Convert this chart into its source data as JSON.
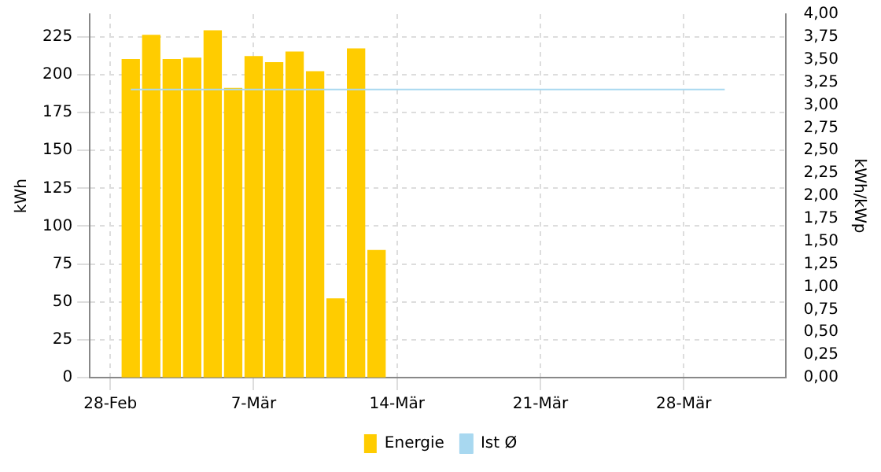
{
  "chart_data": {
    "type": "bar",
    "xlabel": null,
    "ylabel": "kWh",
    "y2label": "kWh/kWp",
    "x": [
      "--03-01",
      "--03-02",
      "--03-03",
      "--03-04",
      "--03-05",
      "--03-06",
      "--03-07",
      "--03-08",
      "--03-09",
      "--03-10",
      "--03-11",
      "--03-12",
      "--03-13"
    ],
    "series": [
      {
        "name": "Energie",
        "color": "#ffcc00",
        "values": [
          210,
          226,
          210,
          211,
          229,
          191,
          212,
          208,
          215,
          202,
          52,
          217,
          84
        ]
      },
      {
        "name": "Ist Ø",
        "type": "line",
        "axis": "y2",
        "color": "#a8d8f0",
        "x": [
          "--03-01",
          "--03-30"
        ],
        "values": [
          3.17,
          3.17
        ]
      }
    ],
    "xlim": [
      "--02-27",
      "--04-02"
    ],
    "xticks": [
      {
        "value": "--02-28",
        "label": "28-Feb"
      },
      {
        "value": "--03-07",
        "label": "7-Mär"
      },
      {
        "value": "--03-14",
        "label": "14-Mär"
      },
      {
        "value": "--03-21",
        "label": "21-Mär"
      },
      {
        "value": "--03-28",
        "label": "28-Mär"
      }
    ],
    "ylim": [
      0,
      240
    ],
    "yticks": [
      0,
      25,
      50,
      75,
      100,
      125,
      150,
      175,
      200,
      225
    ],
    "y2lim": [
      0,
      4
    ],
    "y2ticks": [
      {
        "value": 0,
        "label": "0,00"
      },
      {
        "value": 0.25,
        "label": "0,25"
      },
      {
        "value": 0.5,
        "label": "0,50"
      },
      {
        "value": 0.75,
        "label": "0,75"
      },
      {
        "value": 1,
        "label": "1,00"
      },
      {
        "value": 1.25,
        "label": "1,25"
      },
      {
        "value": 1.5,
        "label": "1,50"
      },
      {
        "value": 1.75,
        "label": "1,75"
      },
      {
        "value": 2,
        "label": "2,00"
      },
      {
        "value": 2.25,
        "label": "2,25"
      },
      {
        "value": 2.5,
        "label": "2,50"
      },
      {
        "value": 2.75,
        "label": "2,75"
      },
      {
        "value": 3,
        "label": "3,00"
      },
      {
        "value": 3.25,
        "label": "3,25"
      },
      {
        "value": 3.5,
        "label": "3,50"
      },
      {
        "value": 3.75,
        "label": "3,75"
      },
      {
        "value": 4,
        "label": "4,00"
      }
    ],
    "grid": true,
    "legend": "bottom",
    "marker": "none",
    "line_style": "solid"
  }
}
